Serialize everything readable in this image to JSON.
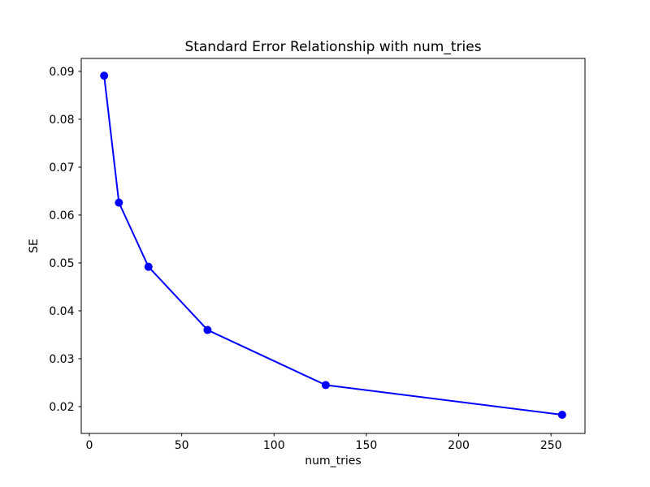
{
  "figure": {
    "background": "#ffffff",
    "frame_color": "#000000"
  },
  "chart_data": {
    "type": "line",
    "title": "Standard Error Relationship with num_tries",
    "xlabel": "num_tries",
    "ylabel": "SE",
    "x": [
      8,
      16,
      32,
      64,
      128,
      256
    ],
    "y": [
      0.0891,
      0.0626,
      0.0492,
      0.036,
      0.0245,
      0.0183
    ],
    "line_color": "#0000ff",
    "marker": "circle",
    "marker_color": "#0000ff",
    "xticks": [
      0,
      50,
      100,
      150,
      200,
      250
    ],
    "yticks": [
      0.02,
      0.03,
      0.04,
      0.05,
      0.06,
      0.07,
      0.08,
      0.09
    ],
    "xlim": [
      -4.4,
      268.4
    ],
    "ylim": [
      0.0144,
      0.0927
    ],
    "grid": false,
    "legend": "none"
  }
}
